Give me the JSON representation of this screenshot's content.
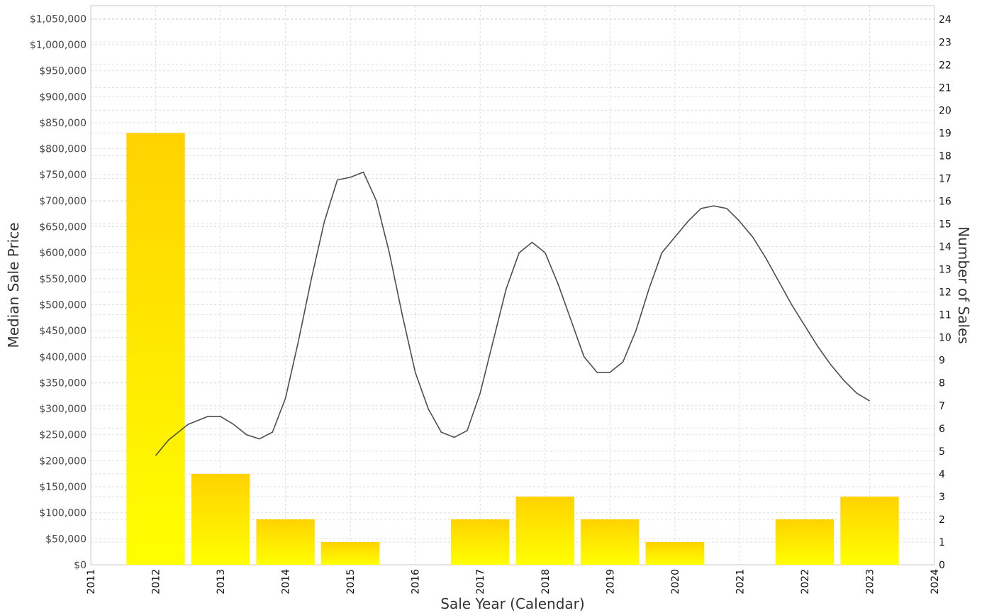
{
  "chart_data": {
    "type": "bar+line",
    "x_label": "Sale Year (Calendar)",
    "y_left_label": "Median Sale Price",
    "y_right_label": "Number of Sales",
    "x_range": [
      2011,
      2024
    ],
    "x_ticks": [
      "2011",
      "2012",
      "2013",
      "2014",
      "2015",
      "2016",
      "2017",
      "2018",
      "2019",
      "2020",
      "2021",
      "2022",
      "2023",
      "2024"
    ],
    "y_left_range": [
      0,
      1075000
    ],
    "y_left_ticks": [
      {
        "value": 0,
        "label": "$0"
      },
      {
        "value": 50000,
        "label": "$50,000"
      },
      {
        "value": 100000,
        "label": "$100,000"
      },
      {
        "value": 150000,
        "label": "$150,000"
      },
      {
        "value": 200000,
        "label": "$200,000"
      },
      {
        "value": 250000,
        "label": "$250,000"
      },
      {
        "value": 300000,
        "label": "$300,000"
      },
      {
        "value": 350000,
        "label": "$350,000"
      },
      {
        "value": 400000,
        "label": "$400,000"
      },
      {
        "value": 450000,
        "label": "$450,000"
      },
      {
        "value": 500000,
        "label": "$500,000"
      },
      {
        "value": 550000,
        "label": "$550,000"
      },
      {
        "value": 600000,
        "label": "$600,000"
      },
      {
        "value": 650000,
        "label": "$650,000"
      },
      {
        "value": 700000,
        "label": "$700,000"
      },
      {
        "value": 750000,
        "label": "$750,000"
      },
      {
        "value": 800000,
        "label": "$800,000"
      },
      {
        "value": 850000,
        "label": "$850,000"
      },
      {
        "value": 900000,
        "label": "$900,000"
      },
      {
        "value": 950000,
        "label": "$950,000"
      },
      {
        "value": 1000000,
        "label": "$1,000,000"
      },
      {
        "value": 1050000,
        "label": "$1,050,000"
      }
    ],
    "y_right_range": [
      0,
      24.6
    ],
    "y_right_ticks": [
      0,
      1,
      2,
      3,
      4,
      5,
      6,
      7,
      8,
      9,
      10,
      11,
      12,
      13,
      14,
      15,
      16,
      17,
      18,
      19,
      20,
      21,
      22,
      23,
      24
    ],
    "grid": true,
    "series": [
      {
        "name": "Number of Sales",
        "kind": "bar",
        "axis": "right",
        "x": [
          2012,
          2013,
          2014,
          2015,
          2017,
          2018,
          2019,
          2020,
          2022,
          2023
        ],
        "values": [
          19,
          4,
          2,
          1,
          2,
          3,
          2,
          1,
          2,
          3
        ],
        "color_top": "#FFD200",
        "color_bottom": "#FFFF00"
      },
      {
        "name": "Median Sale Price",
        "kind": "line",
        "axis": "left",
        "smooth": true,
        "color": "#4d4d4d",
        "x": [
          2012,
          2012.2,
          2012.5,
          2012.8,
          2013,
          2013.2,
          2013.4,
          2013.6,
          2013.8,
          2014,
          2014.2,
          2014.4,
          2014.6,
          2014.8,
          2015,
          2015.2,
          2015.4,
          2015.6,
          2015.8,
          2016,
          2016.2,
          2016.4,
          2016.6,
          2016.8,
          2017,
          2017.2,
          2017.4,
          2017.6,
          2017.8,
          2018,
          2018.2,
          2018.4,
          2018.6,
          2018.8,
          2019,
          2019.2,
          2019.4,
          2019.6,
          2019.8,
          2020,
          2020.2,
          2020.4,
          2020.6,
          2020.8,
          2021,
          2021.2,
          2021.4,
          2021.6,
          2021.8,
          2022,
          2022.2,
          2022.4,
          2022.6,
          2022.8,
          2023
        ],
        "values": [
          210000,
          240000,
          270000,
          285000,
          285000,
          270000,
          250000,
          242000,
          255000,
          320000,
          430000,
          550000,
          660000,
          740000,
          745000,
          755000,
          700000,
          600000,
          480000,
          370000,
          300000,
          255000,
          245000,
          258000,
          330000,
          430000,
          530000,
          600000,
          620000,
          600000,
          540000,
          470000,
          400000,
          370000,
          370000,
          390000,
          450000,
          530000,
          600000,
          630000,
          660000,
          685000,
          690000,
          685000,
          660000,
          630000,
          590000,
          545000,
          500000,
          460000,
          420000,
          385000,
          355000,
          330000,
          315000
        ]
      }
    ]
  }
}
